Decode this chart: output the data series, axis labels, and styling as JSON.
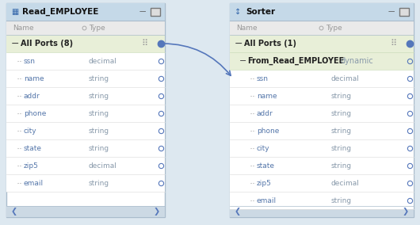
{
  "bg_color": "#dde8f0",
  "panel_border": "#aabccc",
  "panel_bg": "#ffffff",
  "title_bg": "#c5d9e8",
  "col_header_bg": "#eaeaea",
  "col_header_text": "#999999",
  "group_bg": "#e8efd8",
  "row_bg": "#ffffff",
  "row_line": "#e0e0e0",
  "port_name_color": "#5577aa",
  "port_type_color": "#8899aa",
  "dynamic_text_color": "#8899aa",
  "group_text_color": "#222222",
  "title_text_color": "#111111",
  "scrollbar_bg": "#ccd9e4",
  "circle_fill": "#5577bb",
  "circle_empty": "#ffffff",
  "circle_edge": "#5577bb",
  "arrow_color": "#5577bb",
  "minus_color": "#444444",
  "dots_color": "#999999",
  "left_panel": {
    "title": "Read_EMPLOYEE",
    "group_label": "All Ports (8)",
    "col_name": "Name",
    "col_type": "Type",
    "ports": [
      {
        "name": "ssn",
        "type": "decimal"
      },
      {
        "name": "name",
        "type": "string"
      },
      {
        "name": "addr",
        "type": "string"
      },
      {
        "name": "phone",
        "type": "string"
      },
      {
        "name": "city",
        "type": "string"
      },
      {
        "name": "state",
        "type": "string"
      },
      {
        "name": "zip5",
        "type": "decimal"
      },
      {
        "name": "email",
        "type": "string"
      }
    ]
  },
  "right_panel": {
    "title": "Sorter",
    "group_label": "All Ports (1)",
    "col_name": "Name",
    "col_type": "Type",
    "dynamic_port": "From_Read_EMPLOYEE",
    "dynamic_type": "dynamic",
    "ports": [
      {
        "name": "ssn",
        "type": "decimal"
      },
      {
        "name": "name",
        "type": "string"
      },
      {
        "name": "addr",
        "type": "string"
      },
      {
        "name": "phone",
        "type": "string"
      },
      {
        "name": "city",
        "type": "string"
      },
      {
        "name": "state",
        "type": "string"
      },
      {
        "name": "zip5",
        "type": "decimal"
      },
      {
        "name": "email",
        "type": "string"
      }
    ]
  }
}
